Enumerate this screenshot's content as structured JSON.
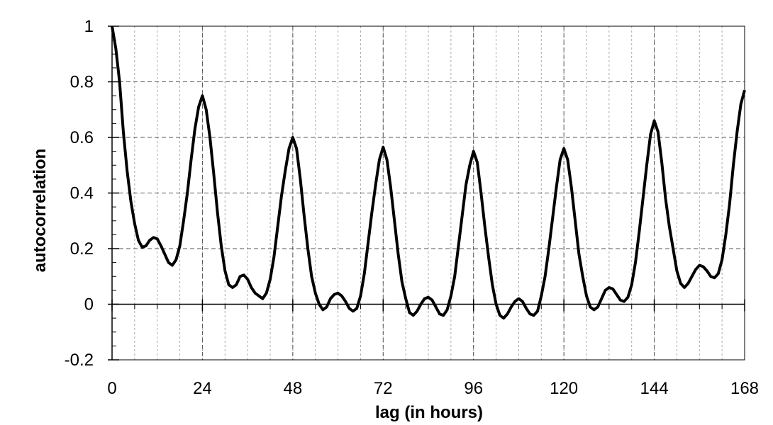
{
  "chart_data": {
    "type": "line",
    "xlabel": "lag (in hours)",
    "ylabel": "autocorrelation",
    "xlim": [
      0,
      168
    ],
    "xticks": [
      0,
      24,
      48,
      72,
      96,
      120,
      144,
      168
    ],
    "x_minor_grid_step": 6,
    "ylim": [
      -0.2,
      1
    ],
    "yticks": [
      -0.2,
      0,
      0.2,
      0.4,
      0.6,
      0.8,
      1
    ],
    "y_minor_tick_step": 0.05,
    "grid": true,
    "x": [
      0,
      1,
      2,
      3,
      4,
      5,
      6,
      7,
      8,
      9,
      10,
      11,
      12,
      13,
      14,
      15,
      16,
      17,
      18,
      19,
      20,
      21,
      22,
      23,
      24,
      25,
      26,
      27,
      28,
      29,
      30,
      31,
      32,
      33,
      34,
      35,
      36,
      37,
      38,
      39,
      40,
      41,
      42,
      43,
      44,
      45,
      46,
      47,
      48,
      49,
      50,
      51,
      52,
      53,
      54,
      55,
      56,
      57,
      58,
      59,
      60,
      61,
      62,
      63,
      64,
      65,
      66,
      67,
      68,
      69,
      70,
      71,
      72,
      73,
      74,
      75,
      76,
      77,
      78,
      79,
      80,
      81,
      82,
      83,
      84,
      85,
      86,
      87,
      88,
      89,
      90,
      91,
      92,
      93,
      94,
      95,
      96,
      97,
      98,
      99,
      100,
      101,
      102,
      103,
      104,
      105,
      106,
      107,
      108,
      109,
      110,
      111,
      112,
      113,
      114,
      115,
      116,
      117,
      118,
      119,
      120,
      121,
      122,
      123,
      124,
      125,
      126,
      127,
      128,
      129,
      130,
      131,
      132,
      133,
      134,
      135,
      136,
      137,
      138,
      139,
      140,
      141,
      142,
      143,
      144,
      145,
      146,
      147,
      148,
      149,
      150,
      151,
      152,
      153,
      154,
      155,
      156,
      157,
      158,
      159,
      160,
      161,
      162,
      163,
      164,
      165,
      166,
      167,
      168
    ],
    "series": [
      {
        "color": "#000000",
        "values": [
          1,
          0.92,
          0.8,
          0.62,
          0.48,
          0.37,
          0.29,
          0.23,
          0.205,
          0.21,
          0.23,
          0.24,
          0.235,
          0.21,
          0.18,
          0.15,
          0.14,
          0.16,
          0.21,
          0.3,
          0.4,
          0.52,
          0.63,
          0.71,
          0.75,
          0.7,
          0.6,
          0.47,
          0.33,
          0.21,
          0.12,
          0.07,
          0.06,
          0.07,
          0.1,
          0.105,
          0.09,
          0.06,
          0.04,
          0.03,
          0.02,
          0.04,
          0.09,
          0.17,
          0.28,
          0.39,
          0.48,
          0.56,
          0.6,
          0.56,
          0.45,
          0.32,
          0.2,
          0.1,
          0.04,
          0.0,
          -0.02,
          -0.01,
          0.02,
          0.035,
          0.04,
          0.03,
          0.01,
          -0.015,
          -0.025,
          -0.015,
          0.03,
          0.11,
          0.22,
          0.33,
          0.43,
          0.52,
          0.565,
          0.52,
          0.42,
          0.3,
          0.18,
          0.08,
          0.02,
          -0.03,
          -0.04,
          -0.025,
          0.0,
          0.02,
          0.025,
          0.015,
          -0.01,
          -0.035,
          -0.04,
          -0.02,
          0.03,
          0.1,
          0.21,
          0.32,
          0.43,
          0.5,
          0.55,
          0.51,
          0.4,
          0.28,
          0.17,
          0.07,
          0.0,
          -0.04,
          -0.05,
          -0.035,
          -0.01,
          0.01,
          0.02,
          0.01,
          -0.015,
          -0.035,
          -0.04,
          -0.025,
          0.03,
          0.1,
          0.2,
          0.31,
          0.42,
          0.52,
          0.56,
          0.52,
          0.42,
          0.3,
          0.18,
          0.1,
          0.03,
          -0.01,
          -0.02,
          -0.01,
          0.02,
          0.05,
          0.06,
          0.055,
          0.035,
          0.015,
          0.01,
          0.025,
          0.07,
          0.15,
          0.26,
          0.38,
          0.5,
          0.61,
          0.66,
          0.62,
          0.51,
          0.38,
          0.28,
          0.2,
          0.12,
          0.075,
          0.06,
          0.075,
          0.1,
          0.125,
          0.14,
          0.135,
          0.12,
          0.1,
          0.095,
          0.11,
          0.16,
          0.25,
          0.36,
          0.5,
          0.62,
          0.72,
          0.77
        ]
      }
    ]
  }
}
